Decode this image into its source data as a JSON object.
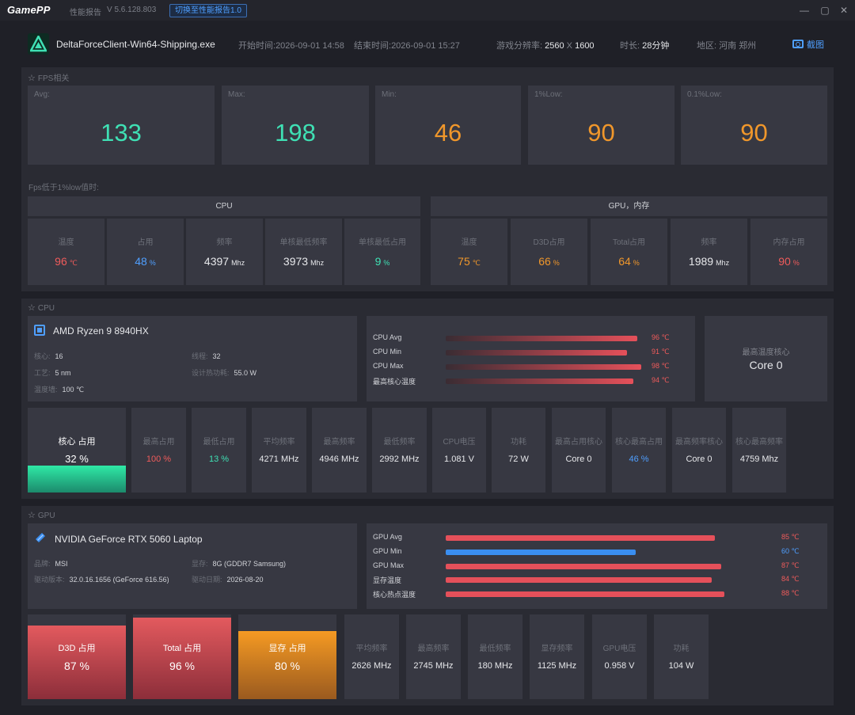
{
  "titlebar": {
    "app_logo": "GamePP",
    "subtitle": "性能报告",
    "version": "V 5.6.128.803",
    "switch_button": "切换至性能报告1.0",
    "minimize": "—",
    "maximize": "▢",
    "close": "✕"
  },
  "header": {
    "exe_name": "DeltaForceClient-Win64-Shipping.exe",
    "start_label": "开始时间:",
    "start_value": "2026-09-01 14:58",
    "end_label": "结束时间:",
    "end_value": "2026-09-01 15:27",
    "resolution_label": "游戏分辨率:",
    "resolution_w": "2560",
    "resolution_x": "X",
    "resolution_h": "1600",
    "duration_label": "时长:",
    "duration_value": "28分钟",
    "region_label": "地区:",
    "region_value": "河南 郑州",
    "screenshot_button": "截图"
  },
  "fps": {
    "section_title": "FPS相关",
    "cards": [
      {
        "label": "Avg:",
        "value": "133",
        "color": "#3fe0b4"
      },
      {
        "label": "Max:",
        "value": "198",
        "color": "#3fe0b4"
      },
      {
        "label": "Min:",
        "value": "46",
        "color": "#f0972b"
      },
      {
        "label": "1%Low:",
        "value": "90",
        "color": "#f0972b"
      },
      {
        "label": "0.1%Low:",
        "value": "90",
        "color": "#f0972b"
      }
    ],
    "low_hint": "Fps低于1%low值时:",
    "cpu_group": "CPU",
    "gpu_group": "GPU，内存",
    "cpu_metrics": [
      {
        "label": "温度",
        "value": "96",
        "unit": "℃",
        "color": "#ef5b5b"
      },
      {
        "label": "占用",
        "value": "48",
        "unit": "%",
        "color": "#4f9fff"
      },
      {
        "label": "频率",
        "value": "4397",
        "unit": "Mhz",
        "color": "#e6e7ea"
      },
      {
        "label": "单核最低频率",
        "value": "3973",
        "unit": "Mhz",
        "color": "#e6e7ea"
      },
      {
        "label": "单核最低占用",
        "value": "9",
        "unit": "%",
        "color": "#3fe0b4"
      }
    ],
    "gpu_metrics": [
      {
        "label": "温度",
        "value": "75",
        "unit": "℃",
        "color": "#f0972b"
      },
      {
        "label": "D3D占用",
        "value": "66",
        "unit": "%",
        "color": "#f0972b"
      },
      {
        "label": "Total占用",
        "value": "64",
        "unit": "%",
        "color": "#f0972b"
      },
      {
        "label": "频率",
        "value": "1989",
        "unit": "Mhz",
        "color": "#e6e7ea"
      },
      {
        "label": "内存占用",
        "value": "90",
        "unit": "%",
        "color": "#ef5b5b"
      }
    ]
  },
  "cpu": {
    "section_title": "CPU",
    "name": "AMD Ryzen 9 8940HX",
    "cores_label": "核心:",
    "cores": "16",
    "threads_label": "线程:",
    "threads": "32",
    "process_label": "工艺:",
    "process": "5 nm",
    "tdp_label": "设计热功耗:",
    "tdp": "55.0 W",
    "temp_wall_label": "温度墙:",
    "temp_wall": "100 ℃",
    "temps": [
      {
        "label": "CPU Avg",
        "value": "96 ℃",
        "pct": 0.96
      },
      {
        "label": "CPU Min",
        "value": "91 ℃",
        "pct": 0.91
      },
      {
        "label": "CPU Max",
        "value": "98 ℃",
        "pct": 0.98
      },
      {
        "label": "最高核心温度",
        "value": "94 ℃",
        "pct": 0.94
      }
    ],
    "hottest_core_label": "最高温度核心",
    "hottest_core": "Core 0",
    "usage_label": "核心 占用",
    "usage_value": "32 %",
    "usage_pct": 0.32,
    "stats": [
      {
        "label": "最高占用",
        "value": "100 %",
        "color": "#ef5b5b"
      },
      {
        "label": "最低占用",
        "value": "13 %",
        "color": "#3fe0b4"
      },
      {
        "label": "平均频率",
        "value": "4271 MHz",
        "color": "#e6e7ea"
      },
      {
        "label": "最高频率",
        "value": "4946 MHz",
        "color": "#e6e7ea"
      },
      {
        "label": "最低频率",
        "value": "2992 MHz",
        "color": "#e6e7ea"
      },
      {
        "label": "CPU电压",
        "value": "1.081 V",
        "color": "#e6e7ea"
      },
      {
        "label": "功耗",
        "value": "72 W",
        "color": "#e6e7ea"
      },
      {
        "label": "最高占用核心",
        "value": "Core 0",
        "color": "#e6e7ea"
      },
      {
        "label": "核心最高占用",
        "value": "46 %",
        "color": "#4f9fff"
      },
      {
        "label": "最高频率核心",
        "value": "Core 0",
        "color": "#e6e7ea"
      },
      {
        "label": "核心最高频率",
        "value": "4759 Mhz",
        "color": "#e6e7ea"
      }
    ]
  },
  "gpu": {
    "section_title": "GPU",
    "name": "NVIDIA GeForce RTX 5060 Laptop",
    "brand_label": "品牌:",
    "brand": "MSI",
    "vram_label": "显存:",
    "vram": "8G (GDDR7 Samsung)",
    "driver_label": "驱动版本:",
    "driver": "32.0.16.1656 (GeForce 616.56)",
    "driver_date_label": "驱动日期:",
    "driver_date": "2026-08-20",
    "temps": [
      {
        "label": "GPU Avg",
        "value": "85 ℃",
        "pct": 0.85,
        "color": "#e5505a"
      },
      {
        "label": "GPU Min",
        "value": "60 ℃",
        "pct": 0.6,
        "color": "#3a8ef0"
      },
      {
        "label": "GPU Max",
        "value": "87 ℃",
        "pct": 0.87,
        "color": "#e5505a"
      },
      {
        "label": "显存温度",
        "value": "84 ℃",
        "pct": 0.84,
        "color": "#e5505a"
      },
      {
        "label": "核心热点温度",
        "value": "88 ℃",
        "pct": 0.88,
        "color": "#e5505a"
      }
    ],
    "usage": [
      {
        "label": "D3D 占用",
        "value": "87 %",
        "pct": 0.87,
        "color": "#e5505a"
      },
      {
        "label": "Total 占用",
        "value": "96 %",
        "pct": 0.96,
        "color": "#e5505a"
      },
      {
        "label": "显存 占用",
        "value": "80 %",
        "pct": 0.8,
        "color": "#f0972b"
      }
    ],
    "stats": [
      {
        "label": "平均频率",
        "value": "2626 MHz"
      },
      {
        "label": "最高频率",
        "value": "2745 MHz"
      },
      {
        "label": "最低频率",
        "value": "180 MHz"
      },
      {
        "label": "显存频率",
        "value": "1125 MHz"
      },
      {
        "label": "GPU电压",
        "value": "0.958 V"
      },
      {
        "label": "功耗",
        "value": "104 W"
      }
    ]
  }
}
